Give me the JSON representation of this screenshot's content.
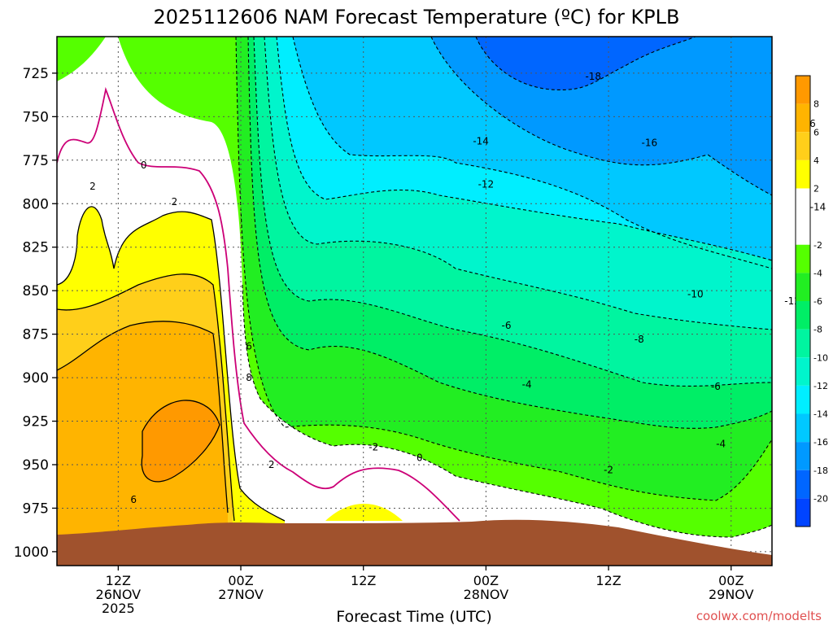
{
  "chart_data": {
    "type": "heatmap",
    "title": "2025112606 NAM Forecast Temperature (ºC) for KPLB",
    "xlabel": "Forecast Time (UTC)",
    "ylabel": "",
    "credit": "coolwx.com/modelts",
    "y_ticks": [
      725,
      750,
      775,
      800,
      825,
      850,
      875,
      900,
      925,
      950,
      975,
      1000
    ],
    "y_range": [
      704,
      1008
    ],
    "x_range_hours": [
      0,
      70
    ],
    "x_ticks": [
      {
        "hour": 6,
        "line1": "12Z",
        "line2": "26NOV",
        "line3": "2025"
      },
      {
        "hour": 18,
        "line1": "00Z",
        "line2": "27NOV",
        "line3": ""
      },
      {
        "hour": 30,
        "line1": "12Z",
        "line2": "",
        "line3": ""
      },
      {
        "hour": 42,
        "line1": "00Z",
        "line2": "28NOV",
        "line3": ""
      },
      {
        "hour": 54,
        "line1": "12Z",
        "line2": "",
        "line3": ""
      },
      {
        "hour": 66,
        "line1": "00Z",
        "line2": "29NOV",
        "line3": ""
      },
      {
        "hour": 78,
        "line1": "12Z",
        "line2": "",
        "line3": ""
      }
    ],
    "colorbar": [
      {
        "range": [
          8,
          10
        ],
        "label": "8",
        "color": "#ff9900"
      },
      {
        "range": [
          6,
          8
        ],
        "label": "6",
        "color": "#ffb400"
      },
      {
        "range": [
          4,
          6
        ],
        "label": "4",
        "color": "#ffcf1a"
      },
      {
        "range": [
          2,
          4
        ],
        "label": "2",
        "color": "#ffff00"
      },
      {
        "range": [
          -2,
          2
        ],
        "label": "-2",
        "color": "#ffffff"
      },
      {
        "range": [
          -4,
          -2
        ],
        "label": "-4",
        "color": "#55ff00"
      },
      {
        "range": [
          -6,
          -4
        ],
        "label": "-6",
        "color": "#22ee22"
      },
      {
        "range": [
          -8,
          -6
        ],
        "label": "-8",
        "color": "#00ee66"
      },
      {
        "range": [
          -10,
          -8
        ],
        "label": "-10",
        "color": "#00f5a0"
      },
      {
        "range": [
          -12,
          -10
        ],
        "label": "-12",
        "color": "#00f5cc"
      },
      {
        "range": [
          -14,
          -12
        ],
        "label": "-14",
        "color": "#00eeff"
      },
      {
        "range": [
          -16,
          -14
        ],
        "label": "-16",
        "color": "#00c8ff"
      },
      {
        "range": [
          -18,
          -16
        ],
        "label": "-18",
        "color": "#0099ff"
      },
      {
        "range": [
          -20,
          -18
        ],
        "label": "-20",
        "color": "#0066ff"
      },
      {
        "range": [
          -22,
          -20
        ],
        "label": "",
        "color": "#0044ff"
      }
    ],
    "terrain_color": "#a0522d",
    "contour_labels": [
      {
        "text": "0",
        "hour": 8.5,
        "p": 778
      },
      {
        "text": "2",
        "hour": 3.5,
        "p": 790
      },
      {
        "text": "2",
        "hour": 11.5,
        "p": 799
      },
      {
        "text": "6",
        "hour": 18.8,
        "p": 882
      },
      {
        "text": "8",
        "hour": 18.8,
        "p": 900
      },
      {
        "text": "6",
        "hour": 7.5,
        "p": 970
      },
      {
        "text": "2",
        "hour": 21.0,
        "p": 950
      },
      {
        "text": "-2",
        "hour": 31.0,
        "p": 940
      },
      {
        "text": "0",
        "hour": 35.5,
        "p": 946
      },
      {
        "text": "-2",
        "hour": 54.0,
        "p": 953
      },
      {
        "text": "-4",
        "hour": 46.0,
        "p": 904
      },
      {
        "text": "-4",
        "hour": 65.0,
        "p": 938
      },
      {
        "text": "-6",
        "hour": 44.0,
        "p": 870
      },
      {
        "text": "-6",
        "hour": 64.5,
        "p": 905
      },
      {
        "text": "-8",
        "hour": 57.0,
        "p": 878
      },
      {
        "text": "-8",
        "hour": 72.8,
        "p": 920
      },
      {
        "text": "-10",
        "hour": 62.5,
        "p": 852
      },
      {
        "text": "-12",
        "hour": 72.0,
        "p": 856
      },
      {
        "text": "-12",
        "hour": 42.0,
        "p": 789
      },
      {
        "text": "-14",
        "hour": 41.5,
        "p": 764
      },
      {
        "text": "-14",
        "hour": 74.5,
        "p": 802
      },
      {
        "text": "-16",
        "hour": 58.0,
        "p": 765
      },
      {
        "text": "-16",
        "hour": 73.5,
        "p": 754
      },
      {
        "text": "-18",
        "hour": 52.5,
        "p": 727
      }
    ]
  }
}
